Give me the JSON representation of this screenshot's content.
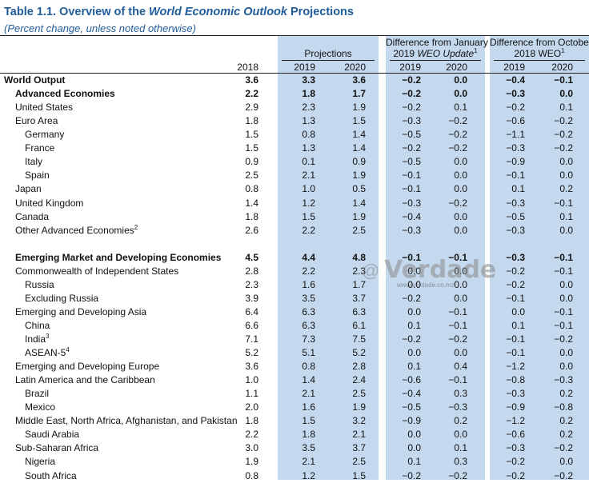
{
  "title": {
    "prefix": "Table 1.1. Overview of the ",
    "italic": "World Economic Outlook",
    "suffix": " Projections"
  },
  "subtitle": "(Percent change, unless noted otherwise)",
  "headers": {
    "projections": "Projections",
    "jan_line1": "Difference from January",
    "jan_line2_a": "2019 ",
    "jan_line2_b": "WEO Update",
    "jan_sup": "1",
    "oct_line1": "Difference from October",
    "oct_line2": "2018 WEO",
    "oct_sup": "1",
    "years": [
      "2018",
      "2019",
      "2020",
      "2019",
      "2020",
      "2019",
      "2020"
    ]
  },
  "rows": [
    {
      "label": "World Output",
      "sup": "",
      "indent": 0,
      "bold": true,
      "values": [
        "3.6",
        "3.3",
        "3.6",
        "−0.2",
        "0.0",
        "−0.4",
        "−0.1"
      ]
    },
    {
      "label": "Advanced Economies",
      "sup": "",
      "indent": 1,
      "bold": true,
      "values": [
        "2.2",
        "1.8",
        "1.7",
        "−0.2",
        "0.0",
        "−0.3",
        "0.0"
      ]
    },
    {
      "label": "United States",
      "sup": "",
      "indent": 1,
      "bold": false,
      "values": [
        "2.9",
        "2.3",
        "1.9",
        "−0.2",
        "0.1",
        "−0.2",
        "0.1"
      ]
    },
    {
      "label": "Euro Area",
      "sup": "",
      "indent": 1,
      "bold": false,
      "values": [
        "1.8",
        "1.3",
        "1.5",
        "−0.3",
        "−0.2",
        "−0.6",
        "−0.2"
      ]
    },
    {
      "label": "Germany",
      "sup": "",
      "indent": 2,
      "bold": false,
      "values": [
        "1.5",
        "0.8",
        "1.4",
        "−0.5",
        "−0.2",
        "−1.1",
        "−0.2"
      ]
    },
    {
      "label": "France",
      "sup": "",
      "indent": 2,
      "bold": false,
      "values": [
        "1.5",
        "1.3",
        "1.4",
        "−0.2",
        "−0.2",
        "−0.3",
        "−0.2"
      ]
    },
    {
      "label": "Italy",
      "sup": "",
      "indent": 2,
      "bold": false,
      "values": [
        "0.9",
        "0.1",
        "0.9",
        "−0.5",
        "0.0",
        "−0.9",
        "0.0"
      ]
    },
    {
      "label": "Spain",
      "sup": "",
      "indent": 2,
      "bold": false,
      "values": [
        "2.5",
        "2.1",
        "1.9",
        "−0.1",
        "0.0",
        "−0.1",
        "0.0"
      ]
    },
    {
      "label": "Japan",
      "sup": "",
      "indent": 1,
      "bold": false,
      "values": [
        "0.8",
        "1.0",
        "0.5",
        "−0.1",
        "0.0",
        "0.1",
        "0.2"
      ]
    },
    {
      "label": "United Kingdom",
      "sup": "",
      "indent": 1,
      "bold": false,
      "values": [
        "1.4",
        "1.2",
        "1.4",
        "−0.3",
        "−0.2",
        "−0.3",
        "−0.1"
      ]
    },
    {
      "label": "Canada",
      "sup": "",
      "indent": 1,
      "bold": false,
      "values": [
        "1.8",
        "1.5",
        "1.9",
        "−0.4",
        "0.0",
        "−0.5",
        "0.1"
      ]
    },
    {
      "label": "Other Advanced Economies",
      "sup": "2",
      "indent": 1,
      "bold": false,
      "values": [
        "2.6",
        "2.2",
        "2.5",
        "−0.3",
        "0.0",
        "−0.3",
        "0.0"
      ]
    },
    {
      "spacer": true
    },
    {
      "label": "Emerging Market and Developing Economies",
      "sup": "",
      "indent": 1,
      "bold": true,
      "values": [
        "4.5",
        "4.4",
        "4.8",
        "−0.1",
        "−0.1",
        "−0.3",
        "−0.1"
      ]
    },
    {
      "label": "Commonwealth of Independent States",
      "sup": "",
      "indent": 1,
      "bold": false,
      "values": [
        "2.8",
        "2.2",
        "2.3",
        "0.0",
        "0.0",
        "−0.2",
        "−0.1"
      ]
    },
    {
      "label": "Russia",
      "sup": "",
      "indent": 2,
      "bold": false,
      "values": [
        "2.3",
        "1.6",
        "1.7",
        "0.0",
        "0.0",
        "−0.2",
        "0.0"
      ]
    },
    {
      "label": "Excluding Russia",
      "sup": "",
      "indent": 2,
      "bold": false,
      "values": [
        "3.9",
        "3.5",
        "3.7",
        "−0.2",
        "0.0",
        "−0.1",
        "0.0"
      ]
    },
    {
      "label": "Emerging and Developing Asia",
      "sup": "",
      "indent": 1,
      "bold": false,
      "values": [
        "6.4",
        "6.3",
        "6.3",
        "0.0",
        "−0.1",
        "0.0",
        "−0.1"
      ]
    },
    {
      "label": "China",
      "sup": "",
      "indent": 2,
      "bold": false,
      "values": [
        "6.6",
        "6.3",
        "6.1",
        "0.1",
        "−0.1",
        "0.1",
        "−0.1"
      ]
    },
    {
      "label": "India",
      "sup": "3",
      "indent": 2,
      "bold": false,
      "values": [
        "7.1",
        "7.3",
        "7.5",
        "−0.2",
        "−0.2",
        "−0.1",
        "−0.2"
      ]
    },
    {
      "label": "ASEAN-5",
      "sup": "4",
      "indent": 2,
      "bold": false,
      "values": [
        "5.2",
        "5.1",
        "5.2",
        "0.0",
        "0.0",
        "−0.1",
        "0.0"
      ]
    },
    {
      "label": "Emerging and Developing Europe",
      "sup": "",
      "indent": 1,
      "bold": false,
      "values": [
        "3.6",
        "0.8",
        "2.8",
        "0.1",
        "0.4",
        "−1.2",
        "0.0"
      ]
    },
    {
      "label": "Latin America and the Caribbean",
      "sup": "",
      "indent": 1,
      "bold": false,
      "values": [
        "1.0",
        "1.4",
        "2.4",
        "−0.6",
        "−0.1",
        "−0.8",
        "−0.3"
      ]
    },
    {
      "label": "Brazil",
      "sup": "",
      "indent": 2,
      "bold": false,
      "values": [
        "1.1",
        "2.1",
        "2.5",
        "−0.4",
        "0.3",
        "−0.3",
        "0.2"
      ]
    },
    {
      "label": "Mexico",
      "sup": "",
      "indent": 2,
      "bold": false,
      "values": [
        "2.0",
        "1.6",
        "1.9",
        "−0.5",
        "−0.3",
        "−0.9",
        "−0.8"
      ]
    },
    {
      "label": "Middle East, North Africa, Afghanistan, and Pakistan",
      "sup": "",
      "indent": 1,
      "bold": false,
      "values": [
        "1.8",
        "1.5",
        "3.2",
        "−0.9",
        "0.2",
        "−1.2",
        "0.2"
      ]
    },
    {
      "label": "Saudi Arabia",
      "sup": "",
      "indent": 2,
      "bold": false,
      "values": [
        "2.2",
        "1.8",
        "2.1",
        "0.0",
        "0.0",
        "−0.6",
        "0.2"
      ]
    },
    {
      "label": "Sub-Saharan Africa",
      "sup": "",
      "indent": 1,
      "bold": false,
      "values": [
        "3.0",
        "3.5",
        "3.7",
        "0.0",
        "0.1",
        "−0.3",
        "−0.2"
      ]
    },
    {
      "label": "Nigeria",
      "sup": "",
      "indent": 2,
      "bold": false,
      "values": [
        "1.9",
        "2.1",
        "2.5",
        "0.1",
        "0.3",
        "−0.2",
        "0.0"
      ]
    },
    {
      "label": "South Africa",
      "sup": "",
      "indent": 2,
      "bold": false,
      "values": [
        "0.8",
        "1.2",
        "1.5",
        "−0.2",
        "−0.2",
        "−0.2",
        "−0.2"
      ]
    }
  ],
  "watermark": {
    "text": "Verdade",
    "url": "www.verdade.co.mz"
  }
}
